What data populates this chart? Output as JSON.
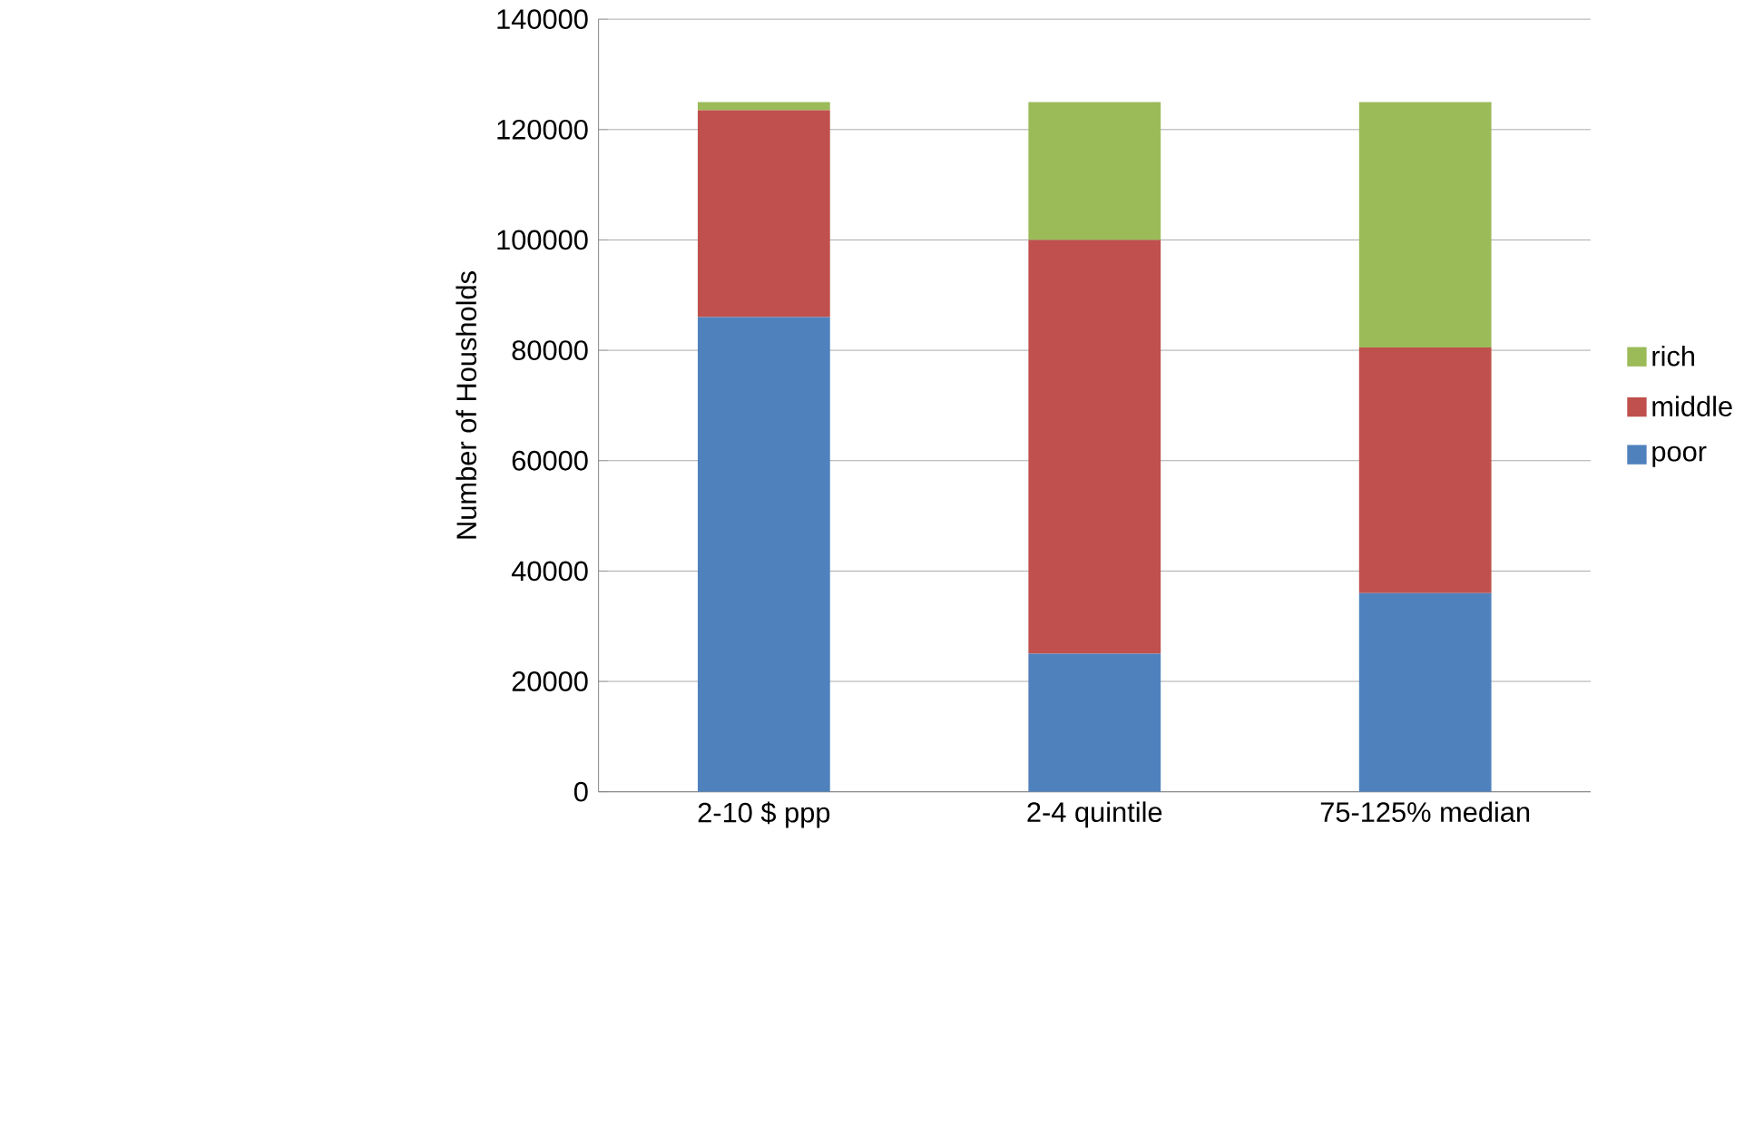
{
  "chart_data": {
    "type": "bar",
    "stacked": true,
    "ylabel": "Number of Housholds",
    "categories": [
      "2-10 $ ppp",
      "2-4 quintile",
      "75-125% median"
    ],
    "series": [
      {
        "name": "poor",
        "color": "#4f81bd",
        "values": [
          86000,
          25000,
          36000
        ]
      },
      {
        "name": "middle",
        "color": "#c0504d",
        "values": [
          37500,
          75000,
          44500
        ]
      },
      {
        "name": "rich",
        "color": "#9bbb59",
        "values": [
          1500,
          25000,
          44500
        ]
      }
    ],
    "ylim": [
      0,
      140000
    ],
    "yticks": [
      0,
      20000,
      40000,
      60000,
      80000,
      100000,
      120000,
      140000
    ],
    "grid": "y",
    "legend": "right"
  }
}
